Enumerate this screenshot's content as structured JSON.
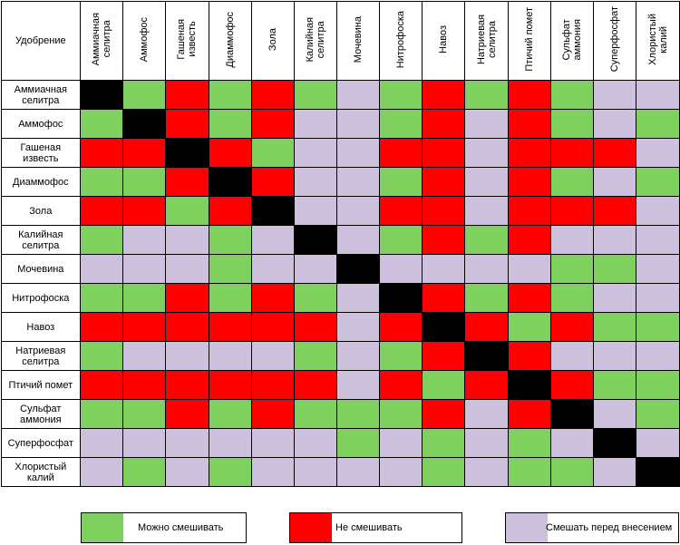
{
  "table": {
    "corner_label": "Удобрение",
    "fertilizers": [
      "Аммиачная\nселитра",
      "Аммофос",
      "Гашеная\nизвесть",
      "Диаммофос",
      "Зола",
      "Калийная\nселитра",
      "Мочевина",
      "Нитрофоска",
      "Навоз",
      "Натриевая\nселитра",
      "Птичий помет",
      "Сульфат\nаммония",
      "Суперфосфат",
      "Хлористый\nкалий"
    ],
    "matrix": [
      [
        "x",
        "g",
        "r",
        "g",
        "r",
        "g",
        "p",
        "g",
        "r",
        "g",
        "r",
        "g",
        "p",
        "p"
      ],
      [
        "g",
        "x",
        "r",
        "g",
        "r",
        "p",
        "p",
        "g",
        "r",
        "p",
        "r",
        "g",
        "p",
        "g"
      ],
      [
        "r",
        "r",
        "x",
        "r",
        "g",
        "p",
        "p",
        "r",
        "r",
        "p",
        "r",
        "r",
        "r",
        "p"
      ],
      [
        "g",
        "g",
        "r",
        "x",
        "r",
        "p",
        "p",
        "g",
        "r",
        "p",
        "r",
        "g",
        "p",
        "g"
      ],
      [
        "r",
        "r",
        "g",
        "r",
        "x",
        "p",
        "p",
        "r",
        "r",
        "p",
        "r",
        "r",
        "r",
        "p"
      ],
      [
        "g",
        "p",
        "p",
        "g",
        "p",
        "x",
        "p",
        "g",
        "r",
        "g",
        "r",
        "p",
        "p",
        "p"
      ],
      [
        "p",
        "p",
        "p",
        "g",
        "p",
        "p",
        "x",
        "p",
        "p",
        "p",
        "p",
        "g",
        "g",
        "p"
      ],
      [
        "g",
        "g",
        "r",
        "g",
        "r",
        "g",
        "p",
        "x",
        "r",
        "g",
        "r",
        "g",
        "p",
        "p"
      ],
      [
        "r",
        "r",
        "r",
        "r",
        "r",
        "r",
        "p",
        "r",
        "x",
        "r",
        "g",
        "r",
        "g",
        "g"
      ],
      [
        "g",
        "p",
        "p",
        "p",
        "p",
        "g",
        "p",
        "g",
        "r",
        "x",
        "r",
        "p",
        "p",
        "p"
      ],
      [
        "r",
        "r",
        "r",
        "r",
        "r",
        "r",
        "p",
        "r",
        "g",
        "r",
        "x",
        "r",
        "g",
        "g"
      ],
      [
        "g",
        "g",
        "r",
        "g",
        "r",
        "g",
        "g",
        "g",
        "r",
        "p",
        "r",
        "x",
        "p",
        "g"
      ],
      [
        "p",
        "p",
        "p",
        "p",
        "p",
        "p",
        "g",
        "p",
        "g",
        "p",
        "g",
        "p",
        "x",
        "p"
      ],
      [
        "p",
        "g",
        "p",
        "g",
        "p",
        "p",
        "p",
        "p",
        "g",
        "p",
        "g",
        "g",
        "p",
        "x"
      ]
    ]
  },
  "colors": {
    "g": "#80d060",
    "r": "#ff0000",
    "p": "#cdc1dd",
    "x": "#000000"
  },
  "legend": [
    {
      "label": "Можно смешивать",
      "color": "#80d060"
    },
    {
      "label": "Не смешивать",
      "color": "#ff0000"
    },
    {
      "label": "Смешать перед внесением",
      "color": "#cdc1dd"
    }
  ]
}
